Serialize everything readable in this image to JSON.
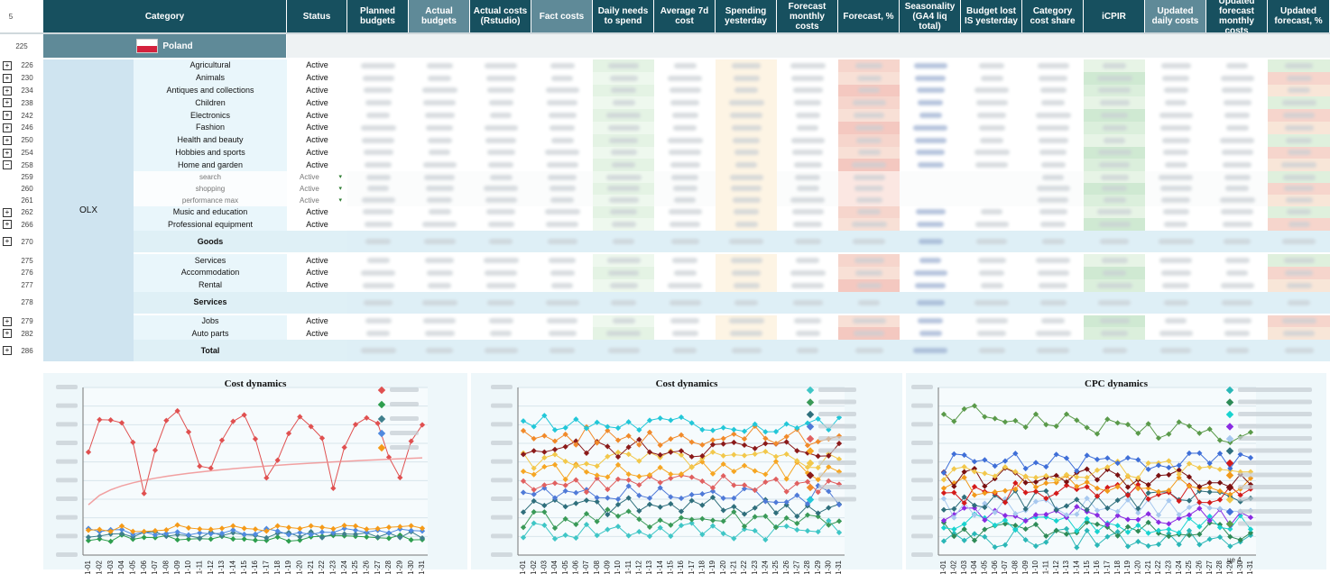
{
  "header": {
    "row_label": "5",
    "columns": [
      {
        "label": "Category"
      },
      {
        "label": "Status"
      },
      {
        "label": "Planned budgets"
      },
      {
        "label": "Actual budgets"
      },
      {
        "label": "Actual costs (Rstudio)"
      },
      {
        "label": "Fact costs"
      },
      {
        "label": "Daily needs to spend"
      },
      {
        "label": "Average 7d cost"
      },
      {
        "label": "Spending yesterday"
      },
      {
        "label": "Forecast monthly costs"
      },
      {
        "label": "Forecast, %"
      },
      {
        "label": "Seasonality (GA4 liq total)"
      },
      {
        "label": "Budget lost IS yesterday"
      },
      {
        "label": "Category cost share"
      },
      {
        "label": "iCPIR"
      },
      {
        "label": "Updated daily costs"
      },
      {
        "label": "Updated forecast monthly costs"
      },
      {
        "label": "Updated forecast, %"
      }
    ]
  },
  "country": {
    "row": "225",
    "name": "Poland",
    "flag": "poland-flag"
  },
  "platform": "OLX",
  "rows": [
    {
      "num": "226",
      "name": "Agricultural",
      "status": "Active",
      "kind": "cat",
      "exp": "+"
    },
    {
      "num": "230",
      "name": "Animals",
      "status": "Active",
      "kind": "cat",
      "exp": "+"
    },
    {
      "num": "234",
      "name": "Antiques and collections",
      "status": "Active",
      "kind": "cat",
      "exp": "+"
    },
    {
      "num": "238",
      "name": "Children",
      "status": "Active",
      "kind": "cat",
      "exp": "+"
    },
    {
      "num": "242",
      "name": "Electronics",
      "status": "Active",
      "kind": "cat",
      "exp": "+"
    },
    {
      "num": "246",
      "name": "Fashion",
      "status": "Active",
      "kind": "cat",
      "exp": "+"
    },
    {
      "num": "250",
      "name": "Health and beauty",
      "status": "Active",
      "kind": "cat",
      "exp": "+"
    },
    {
      "num": "254",
      "name": "Hobbies and sports",
      "status": "Active",
      "kind": "cat",
      "exp": "+"
    },
    {
      "num": "258",
      "name": "Home and garden",
      "status": "Active",
      "kind": "cat",
      "exp": "−"
    },
    {
      "num": "259",
      "name": "search",
      "status": "Active",
      "kind": "sub",
      "exp": ""
    },
    {
      "num": "260",
      "name": "shopping",
      "status": "Active",
      "kind": "sub",
      "exp": ""
    },
    {
      "num": "261",
      "name": "performance max",
      "status": "Active",
      "kind": "sub",
      "exp": ""
    },
    {
      "num": "262",
      "name": "Music and education",
      "status": "Active",
      "kind": "cat",
      "exp": "+"
    },
    {
      "num": "266",
      "name": "Professional equipment",
      "status": "Active",
      "kind": "cat",
      "exp": "+"
    },
    {
      "num": "270",
      "name": "Goods",
      "status": "",
      "kind": "group",
      "exp": "+"
    },
    {
      "num": "275",
      "name": "Services",
      "status": "Active",
      "kind": "cat",
      "exp": ""
    },
    {
      "num": "276",
      "name": "Accommodation",
      "status": "Active",
      "kind": "cat",
      "exp": ""
    },
    {
      "num": "277",
      "name": "Rental",
      "status": "Active",
      "kind": "cat",
      "exp": ""
    },
    {
      "num": "278",
      "name": "Services",
      "status": "",
      "kind": "group",
      "exp": ""
    },
    {
      "num": "279",
      "name": "Jobs",
      "status": "Active",
      "kind": "cat",
      "exp": "+"
    },
    {
      "num": "282",
      "name": "Auto parts",
      "status": "Active",
      "kind": "cat",
      "exp": "+"
    },
    {
      "num": "286",
      "name": "Total",
      "status": "",
      "kind": "group",
      "exp": "+"
    }
  ],
  "dates": [
    "01-01",
    "01-02",
    "01-03",
    "01-04",
    "01-05",
    "01-06",
    "01-07",
    "01-08",
    "01-09",
    "01-10",
    "01-11",
    "01-12",
    "01-13",
    "01-14",
    "01-15",
    "01-16",
    "01-17",
    "01-18",
    "01-19",
    "01-20",
    "01-21",
    "01-22",
    "01-23",
    "01-24",
    "01-25",
    "01-26",
    "01-27",
    "01-28",
    "01-29",
    "01-30",
    "01-31"
  ],
  "charts": [
    {
      "title": "Cost dynamics",
      "colors": [
        "#e05050",
        "#2e9e4e",
        "#3f7f8c",
        "#4f8ae0",
        "#f59a18"
      ]
    },
    {
      "title": "Cost dynamics",
      "colors": [
        "#3fc6c6",
        "#3a9a58",
        "#2f6f7c",
        "#4f7ad8",
        "#e06060",
        "#f6a623",
        "#f2c84b",
        "#8b1a1a",
        "#f18a2a",
        "#22c7d8"
      ]
    },
    {
      "title": "CPC dynamics",
      "colors": [
        "#2bb7b7",
        "#2e8b57",
        "#19d3cf",
        "#8a2be2",
        "#a7c8ef",
        "#2f6f7c",
        "#d41a1a",
        "#f29a1a",
        "#7a1010",
        "#f2c84b",
        "#3f6fd8",
        "#5a9a4a"
      ],
      "extra_label": "це 4"
    }
  ]
}
